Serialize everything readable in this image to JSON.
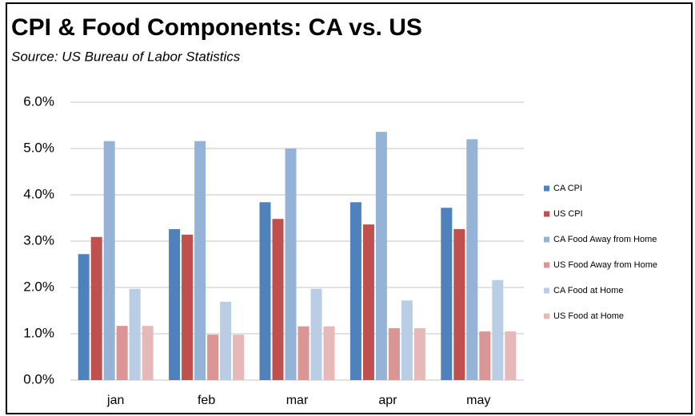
{
  "chart_data": {
    "type": "bar",
    "title": "CPI & Food Components:  CA vs. US",
    "subtitle": "Source:  US Bureau of Labor Statistics",
    "categories": [
      "jan",
      "feb",
      "mar",
      "apr",
      "may"
    ],
    "series": [
      {
        "name": "CA CPI",
        "color": "#4f81bd",
        "values": [
          2.72,
          3.26,
          3.84,
          3.84,
          3.72
        ]
      },
      {
        "name": "US CPI",
        "color": "#c0504d",
        "values": [
          3.09,
          3.14,
          3.48,
          3.36,
          3.26
        ]
      },
      {
        "name": "CA Food Away from Home",
        "color": "#95b3d7",
        "values": [
          5.16,
          5.16,
          5.0,
          5.36,
          5.2
        ]
      },
      {
        "name": "US Food Away from Home",
        "color": "#d99694",
        "values": [
          1.17,
          0.98,
          1.16,
          1.12,
          1.05
        ]
      },
      {
        "name": "CA Food at Home",
        "color": "#b9cde5",
        "values": [
          1.97,
          1.69,
          1.97,
          1.72,
          2.16
        ]
      },
      {
        "name": "US Food at Home",
        "color": "#e6b9b8",
        "values": [
          1.17,
          0.98,
          1.16,
          1.12,
          1.05
        ]
      }
    ],
    "ylim": [
      0,
      6
    ],
    "yticks": [
      {
        "value": 0,
        "label": "0.0%"
      },
      {
        "value": 1,
        "label": "1.0%"
      },
      {
        "value": 2,
        "label": "2.0%"
      },
      {
        "value": 3,
        "label": "3.0%"
      },
      {
        "value": 4,
        "label": "4.0%"
      },
      {
        "value": 5,
        "label": "5.0%"
      },
      {
        "value": 6,
        "label": "6.0%"
      }
    ],
    "grid": true,
    "legend": "right"
  }
}
